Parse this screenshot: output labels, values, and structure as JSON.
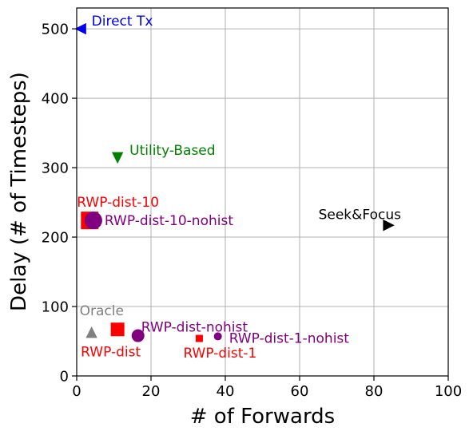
{
  "chart_data": {
    "type": "scatter",
    "title": "",
    "xlabel": "# of Forwards",
    "ylabel": "Delay (# of Timesteps)",
    "xlim": [
      0,
      100
    ],
    "ylim": [
      0,
      530
    ],
    "xticks": [
      0,
      20,
      40,
      60,
      80,
      100
    ],
    "yticks": [
      0,
      100,
      200,
      300,
      400,
      500
    ],
    "grid": true,
    "points": [
      {
        "label": "Direct Tx",
        "x": 1,
        "y": 500,
        "color": "#0000ee",
        "marker": "triangle-left",
        "size": 12
      },
      {
        "label": "Utility-Based",
        "x": 11,
        "y": 314,
        "color": "#008000",
        "marker": "triangle-down",
        "size": 12
      },
      {
        "label": "RWP-dist-10",
        "x": 3.5,
        "y": 224,
        "color": "#ff0000",
        "marker": "square",
        "size": 22
      },
      {
        "label": "RWP-dist-10-nohist",
        "x": 4.5,
        "y": 224,
        "color": "#800080",
        "marker": "circle",
        "size": 22
      },
      {
        "label": "Seek&Focus",
        "x": 84,
        "y": 217,
        "color": "#000000",
        "marker": "triangle-right",
        "size": 12
      },
      {
        "label": "Oracle",
        "x": 4,
        "y": 63,
        "color": "#808080",
        "marker": "triangle-up",
        "size": 12
      },
      {
        "label": "RWP-dist",
        "x": 11,
        "y": 67,
        "color": "#ff0000",
        "marker": "square",
        "size": 17
      },
      {
        "label": "RWP-dist-nohist",
        "x": 16.5,
        "y": 58,
        "color": "#800080",
        "marker": "circle",
        "size": 16
      },
      {
        "label": "RWP-dist-1",
        "x": 33,
        "y": 54,
        "color": "#ff0000",
        "marker": "square",
        "size": 9
      },
      {
        "label": "RWP-dist-1-nohist",
        "x": 38,
        "y": 57,
        "color": "#800080",
        "marker": "circle",
        "size": 10
      }
    ]
  }
}
